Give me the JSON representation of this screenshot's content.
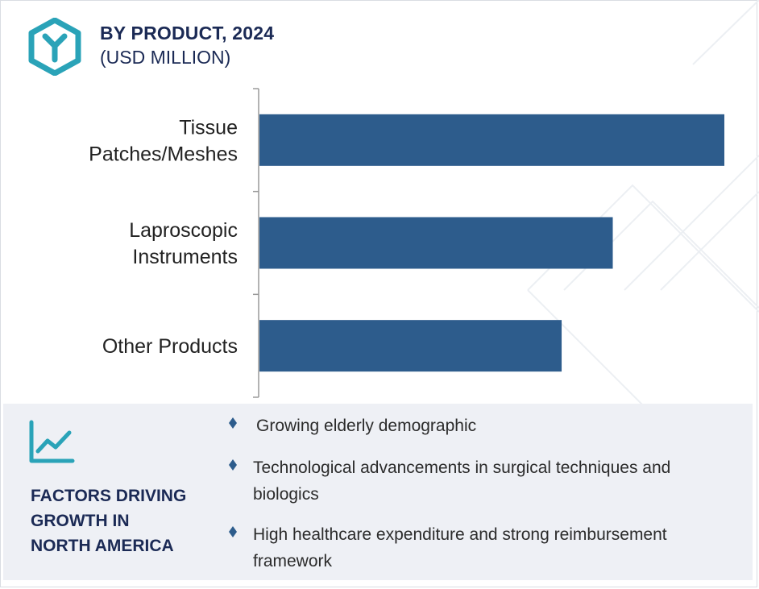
{
  "header": {
    "title": "BY PRODUCT, 2024",
    "subtitle": "(USD MILLION)"
  },
  "chart_data": {
    "type": "bar",
    "orientation": "horizontal",
    "title": "BY PRODUCT, 2024",
    "subtitle": "(USD MILLION)",
    "categories": [
      "Tissue Patches/Meshes",
      "Laproscopic Instruments",
      "Other Products"
    ],
    "category_lines": [
      [
        "Tissue",
        "Patches/Meshes"
      ],
      [
        "Laproscopic",
        "Instruments"
      ],
      [
        "Other Products"
      ]
    ],
    "values": [
      100,
      76,
      65
    ],
    "value_units": "relative (no value axis shown)",
    "xlim": [
      0,
      100
    ],
    "bar_color": "#2d5c8c",
    "grid": false,
    "legend": "none"
  },
  "factors": {
    "heading_lines": [
      "FACTORS DRIVING",
      "GROWTH IN",
      "NORTH AMERICA"
    ],
    "items": [
      {
        "lines": [
          "Growing elderly demographic"
        ]
      },
      {
        "lines": [
          "Technological advancements in surgical techniques and",
          "biologics"
        ]
      },
      {
        "lines": [
          "High healthcare expenditure and strong reimbursement",
          "framework"
        ]
      }
    ]
  },
  "colors": {
    "brand_teal": "#2aa3b8",
    "heading_navy": "#1b2a55",
    "bar": "#2d5c8c",
    "panel_bg": "#eef0f5"
  },
  "icons": {
    "logo": "hexagon-y-logo-icon",
    "trend": "line-chart-trend-icon",
    "bullet": "diamond-bullet-icon"
  }
}
